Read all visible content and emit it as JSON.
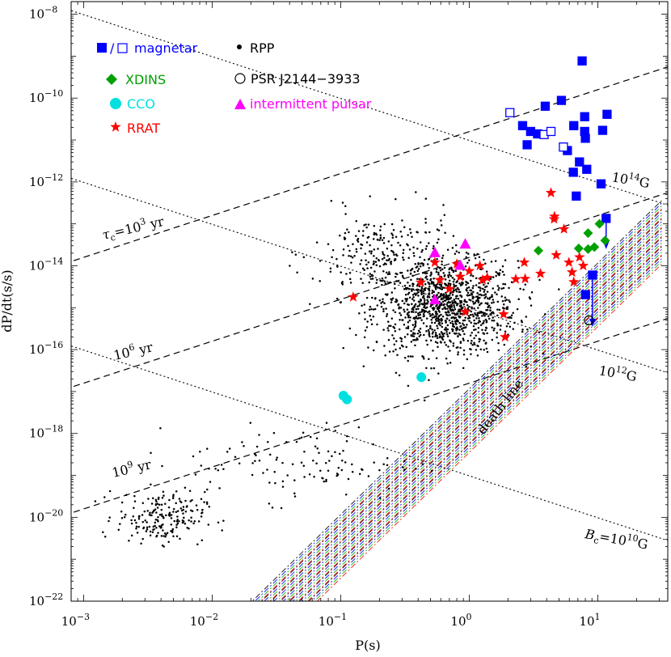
{
  "chart_data": {
    "type": "scatter",
    "title": "",
    "xlabel": "P(s)",
    "ylabel": "dP/dt(s/s)",
    "xscale": "log",
    "yscale": "log",
    "xlim": [
      0.0008,
      35
    ],
    "ylim": [
      1e-22,
      2e-08
    ],
    "x_ticks": [
      {
        "v": 0.001,
        "m": "10",
        "e": "−3"
      },
      {
        "v": 0.01,
        "m": "10",
        "e": "−2"
      },
      {
        "v": 0.1,
        "m": "10",
        "e": "−1"
      },
      {
        "v": 1,
        "m": "10",
        "e": "0"
      },
      {
        "v": 10,
        "m": "10",
        "e": "1"
      }
    ],
    "y_ticks": [
      {
        "v": 1e-08,
        "m": "10",
        "e": "−8"
      },
      {
        "v": 1e-10,
        "m": "10",
        "e": "−10"
      },
      {
        "v": 1e-12,
        "m": "10",
        "e": "−12"
      },
      {
        "v": 1e-14,
        "m": "10",
        "e": "−14"
      },
      {
        "v": 1e-16,
        "m": "10",
        "e": "−16"
      },
      {
        "v": 1e-18,
        "m": "10",
        "e": "−18"
      },
      {
        "v": 1e-20,
        "m": "10",
        "e": "−20"
      },
      {
        "v": 1e-22,
        "m": "10",
        "e": "−22"
      }
    ],
    "legend": [
      {
        "text": "■/□ magnetar",
        "color": "#0000ff"
      },
      {
        "text": "XDINS",
        "color": "#00a000"
      },
      {
        "text": "CCO",
        "color": "#00e0e0"
      },
      {
        "text": "RRAT",
        "color": "#ff0000"
      },
      {
        "text": "RPP",
        "color": "#000000"
      },
      {
        "text": "PSR J2144−3933",
        "color": "#000000"
      },
      {
        "text": "intermittent pulsar",
        "color": "#ff00ff"
      }
    ],
    "lines": {
      "age": [
        {
          "value": "1e3",
          "label_pre": "τ",
          "label_sub": "c",
          "label_post": "=10",
          "label_exp": "3",
          "label_unit": " yr"
        },
        {
          "value": "1e6",
          "label_pre": "10",
          "label_exp": "6",
          "label_unit": " yr"
        },
        {
          "value": "1e9",
          "label_pre": "10",
          "label_exp": "9",
          "label_unit": " yr"
        }
      ],
      "field": [
        {
          "value": "1e14",
          "label_pre": "10",
          "label_exp": "14",
          "label_unit": "G"
        },
        {
          "value": "1e12",
          "label_pre": "10",
          "label_exp": "12",
          "label_unit": "G"
        },
        {
          "value": "1e10",
          "label_pre": "B",
          "label_sub": "c",
          "label_post": "=10",
          "label_exp": "10",
          "label_unit": "G"
        }
      ],
      "death_line_label": "death line"
    },
    "series": [
      {
        "name": "magnetar",
        "marker": "square",
        "color": "#0000ff",
        "filled": [
          [
            7.55,
            7.7e-10
          ],
          [
            5.21,
            8.8e-11
          ],
          [
            3.9,
            6.4e-11
          ],
          [
            11.8,
            4.1e-11
          ],
          [
            7.9,
            3.6e-11
          ],
          [
            2.6,
            2.2e-11
          ],
          [
            6.5,
            2.2e-11
          ],
          [
            3.0,
            1.6e-11
          ],
          [
            7.9,
            1.6e-11
          ],
          [
            3.4,
            1.4e-11
          ],
          [
            10.9,
            1.7e-11
          ],
          [
            8.0,
            1.1e-11
          ],
          [
            2.82,
            7.7e-12
          ],
          [
            5.8,
            5.6e-12
          ],
          [
            7.2,
            3e-12
          ],
          [
            6.45,
            1.7e-12
          ],
          [
            8.2,
            2e-12
          ],
          [
            10.6,
            9e-13
          ],
          [
            6.8,
            4.6e-13
          ],
          [
            11.6,
            1.35e-13
          ],
          [
            8.02,
            2.05e-15
          ],
          [
            9.1,
            6e-15
          ]
        ],
        "open": [
          [
            2.07,
            4.5e-11
          ],
          [
            3.82,
            1.35e-11
          ],
          [
            4.32,
            1.6e-11
          ],
          [
            5.4,
            6.8e-12
          ]
        ]
      },
      {
        "name": "XDINS",
        "marker": "diamond",
        "color": "#00a000",
        "points": [
          [
            3.45,
            2.3e-14
          ],
          [
            10.3,
            1e-13
          ],
          [
            8.4,
            6e-14
          ],
          [
            11.4,
            4e-14
          ],
          [
            9.4,
            2.8e-14
          ],
          [
            7.1,
            2.6e-14
          ],
          [
            8.4,
            2.5e-14
          ]
        ]
      },
      {
        "name": "CCO",
        "marker": "circle",
        "color": "#00e0e0",
        "points": [
          [
            0.105,
            8e-18
          ],
          [
            0.112,
            6.5e-18
          ],
          [
            0.424,
            2.2e-17
          ]
        ]
      },
      {
        "name": "RRAT",
        "marker": "star",
        "color": "#ff0000",
        "points": [
          [
            0.125,
            1.8e-15
          ],
          [
            0.42,
            4e-15
          ],
          [
            0.54,
            1.2e-14
          ],
          [
            0.59,
            4.6e-15
          ],
          [
            0.7,
            2.8e-15
          ],
          [
            0.8,
            1.1e-14
          ],
          [
            0.85,
            5.5e-15
          ],
          [
            0.93,
            8e-16
          ],
          [
            1.0,
            7.5e-15
          ],
          [
            1.21,
            1e-14
          ],
          [
            1.27,
            4.6e-15
          ],
          [
            1.38,
            5.2e-15
          ],
          [
            1.85,
            7e-16
          ],
          [
            1.9,
            2e-16
          ],
          [
            2.3,
            4.8e-15
          ],
          [
            2.72,
            4.9e-15
          ],
          [
            2.68,
            1.2e-14
          ],
          [
            3.58,
            6.5e-15
          ],
          [
            4.32,
            5.5e-13
          ],
          [
            4.6,
            1.5e-13
          ],
          [
            4.57,
            1.3e-13
          ],
          [
            4.75,
            1.8e-14
          ],
          [
            5.45,
            7.5e-14
          ],
          [
            5.96,
            1.2e-14
          ],
          [
            6.3,
            7e-15
          ],
          [
            6.5,
            4.1e-15
          ],
          [
            7.2,
            1.6e-14
          ],
          [
            7.7,
            1e-14
          ]
        ]
      },
      {
        "name": "intermittent pulsar",
        "marker": "triangle",
        "color": "#ff00ff",
        "points": [
          [
            0.54,
            2e-14
          ],
          [
            0.93,
            3.2e-14
          ],
          [
            0.85,
            1e-14
          ],
          [
            0.54,
            1.5e-15
          ]
        ]
      },
      {
        "name": "PSR J2144−3933",
        "marker": "open-circle",
        "color": "#000000",
        "points": [
          [
            8.51,
            5e-16
          ]
        ]
      }
    ],
    "upper_limits": [
      [
        11.6,
        1.35e-13,
        2.5e-14
      ],
      [
        9.1,
        6e-15,
        3.5e-16
      ]
    ],
    "rpp_clusters": [
      {
        "cx": 0.65,
        "cy": 1e-15,
        "sx": 0.28,
        "sy": 0.55,
        "n": 1150
      },
      {
        "cx": 0.22,
        "cy": 2e-14,
        "sx": 0.28,
        "sy": 0.5,
        "n": 230
      },
      {
        "cx": 0.004,
        "cy": 1e-20,
        "sx": 0.17,
        "sy": 0.3,
        "n": 200
      },
      {
        "cx": 0.05,
        "cy": 2e-19,
        "sx": 0.45,
        "sy": 0.45,
        "n": 120
      }
    ]
  }
}
